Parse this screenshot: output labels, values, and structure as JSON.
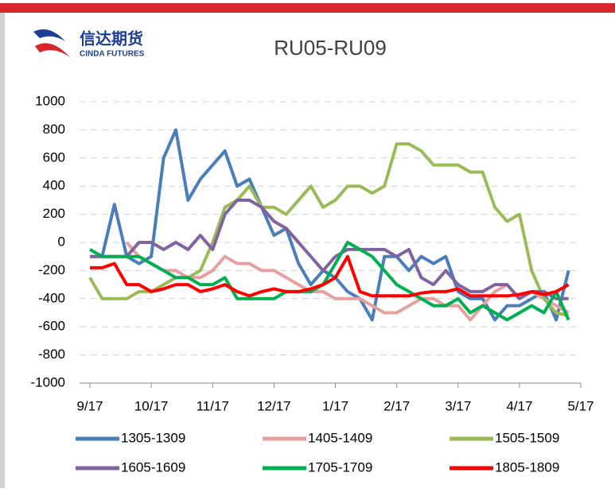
{
  "logo": {
    "name": "信达期货",
    "subtitle": "CINDA FUTURES"
  },
  "chart_data": {
    "type": "line",
    "title": "RU05-RU09",
    "x": [
      0,
      6,
      12,
      18,
      24,
      30,
      36,
      42,
      48,
      54,
      60,
      66,
      72,
      78,
      84,
      90,
      96,
      102,
      108,
      114,
      120,
      126,
      132,
      138,
      144,
      150,
      156,
      162,
      168,
      174,
      180,
      186,
      192,
      198,
      204,
      210,
      216,
      222,
      228,
      234
    ],
    "xlim": [
      0,
      240
    ],
    "xticks": [
      {
        "value": 0,
        "label": "9/17"
      },
      {
        "value": 30,
        "label": "10/17"
      },
      {
        "value": 60,
        "label": "11/17"
      },
      {
        "value": 90,
        "label": "12/17"
      },
      {
        "value": 120,
        "label": "1/17"
      },
      {
        "value": 150,
        "label": "2/17"
      },
      {
        "value": 180,
        "label": "3/17"
      },
      {
        "value": 210,
        "label": "4/17"
      },
      {
        "value": 240,
        "label": "5/17"
      }
    ],
    "ylim": [
      -1000,
      1000
    ],
    "yticks": [
      1000,
      800,
      600,
      400,
      200,
      0,
      -200,
      -400,
      -600,
      -800,
      -1000
    ],
    "grid": true,
    "series": [
      {
        "name": "1305-1309",
        "color": "#4a7ebb",
        "values": [
          -100,
          -100,
          270,
          -100,
          -150,
          -100,
          600,
          800,
          300,
          450,
          550,
          650,
          400,
          450,
          250,
          50,
          100,
          -150,
          -300,
          -200,
          -250,
          -350,
          -400,
          -550,
          -100,
          -100,
          -200,
          -100,
          -150,
          -100,
          -350,
          -400,
          -400,
          -550,
          -450,
          -450,
          -400,
          -350,
          -550,
          -200
        ]
      },
      {
        "name": "1405-1409",
        "color": "#e6a0a0",
        "values": [
          null,
          null,
          null,
          0,
          -100,
          -150,
          -200,
          -200,
          -250,
          -250,
          -200,
          -100,
          -150,
          -150,
          -200,
          -200,
          -250,
          -300,
          -350,
          -350,
          -400,
          -400,
          -400,
          -450,
          -500,
          -500,
          -450,
          -400,
          -400,
          -450,
          -450,
          -550,
          -450,
          -350,
          -300,
          -400,
          -350,
          -400,
          -450,
          -500
        ]
      },
      {
        "name": "1505-1509",
        "color": "#9bbb59",
        "values": [
          -250,
          -400,
          -400,
          -400,
          -350,
          -350,
          -300,
          -250,
          -250,
          -200,
          0,
          250,
          300,
          400,
          250,
          250,
          200,
          300,
          400,
          250,
          300,
          400,
          400,
          350,
          400,
          700,
          700,
          650,
          550,
          550,
          550,
          500,
          500,
          250,
          150,
          200,
          -200,
          -400,
          -500,
          -520
        ]
      },
      {
        "name": "1605-1609",
        "color": "#8064a2",
        "values": [
          -100,
          -100,
          -100,
          -100,
          0,
          0,
          -50,
          0,
          -50,
          50,
          -50,
          200,
          300,
          300,
          250,
          150,
          100,
          0,
          -100,
          -200,
          -100,
          -50,
          -50,
          -50,
          -50,
          -100,
          -50,
          -250,
          -300,
          -200,
          -300,
          -350,
          -350,
          -300,
          -300,
          -400,
          -350,
          -350,
          -400,
          -400
        ]
      },
      {
        "name": "1705-1709",
        "color": "#00b050",
        "values": [
          -50,
          -100,
          -100,
          -100,
          -100,
          -150,
          -200,
          -250,
          -250,
          -300,
          -300,
          -250,
          -400,
          -400,
          -400,
          -400,
          -350,
          -350,
          -350,
          -300,
          -150,
          0,
          -50,
          -100,
          -200,
          -300,
          -350,
          -400,
          -450,
          -450,
          -400,
          -500,
          -450,
          -500,
          -550,
          -500,
          -450,
          -500,
          -350,
          -550
        ]
      },
      {
        "name": "1805-1809",
        "color": "#ff0000",
        "values": [
          -180,
          -180,
          -150,
          -300,
          -300,
          -350,
          -330,
          -300,
          -300,
          -350,
          -330,
          -300,
          -350,
          -380,
          -350,
          -330,
          -350,
          -350,
          -330,
          -300,
          -250,
          -100,
          -350,
          -380,
          -380,
          -380,
          -380,
          -360,
          -350,
          -350,
          -330,
          -380,
          -380,
          -380,
          -380,
          -370,
          -350,
          -370,
          -350,
          -300
        ]
      }
    ]
  }
}
